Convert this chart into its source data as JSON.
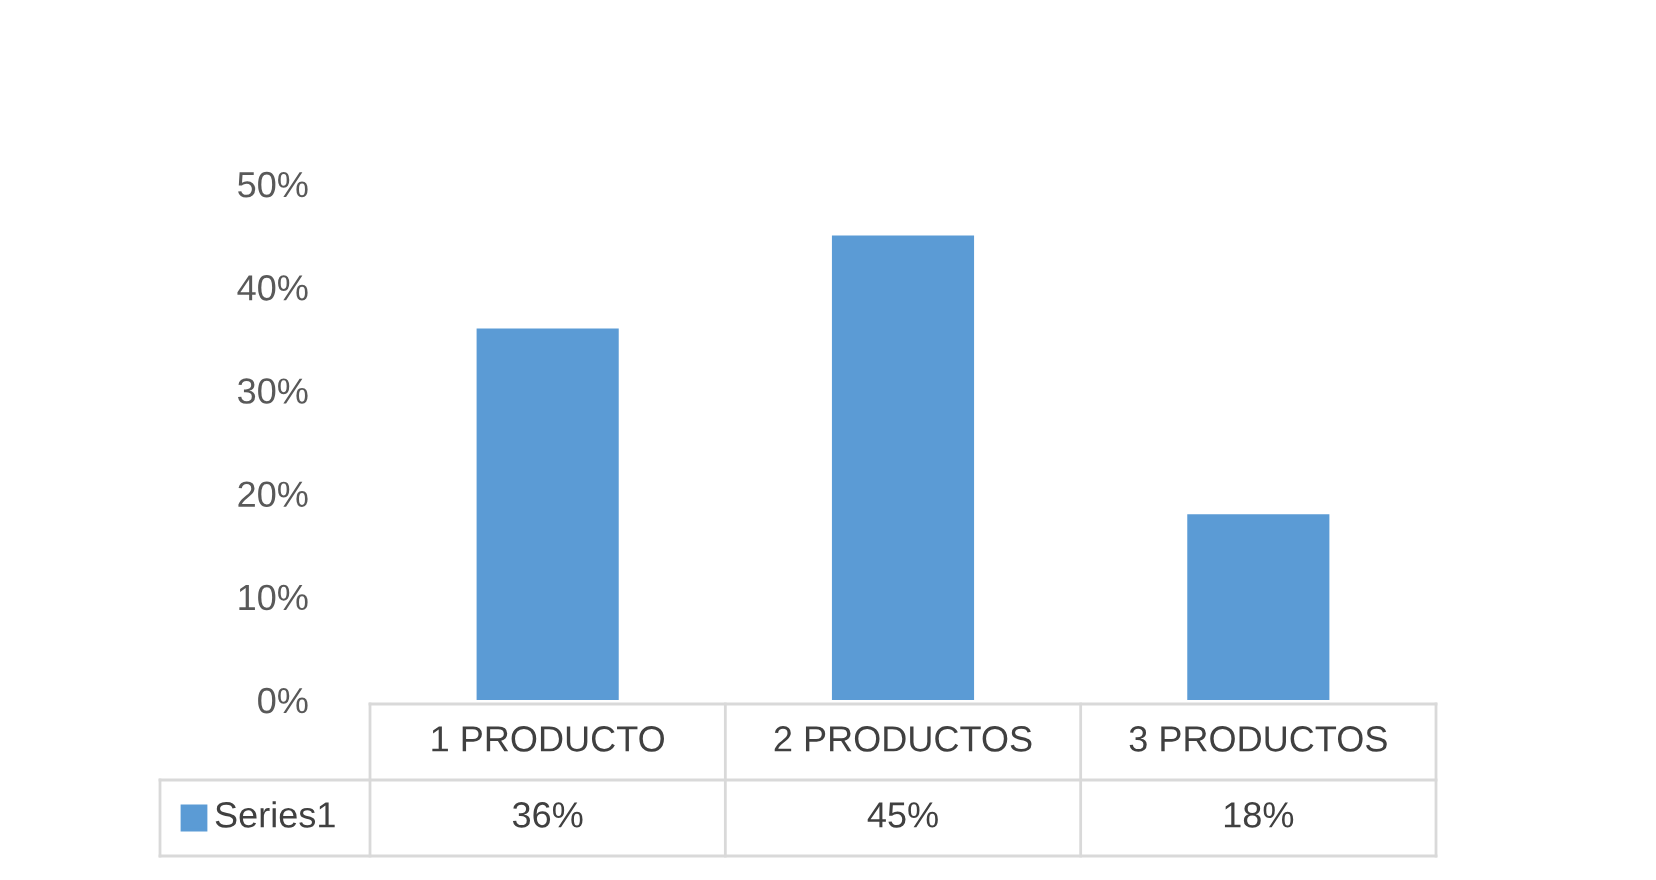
{
  "chart_data": {
    "type": "bar",
    "categories": [
      "1 PRODUCTO",
      "2 PRODUCTOS",
      "3 PRODUCTOS"
    ],
    "series": [
      {
        "name": "Series1",
        "color": "#5b9bd5",
        "values": [
          36,
          45,
          18
        ],
        "value_labels": [
          "36%",
          "45%",
          "18%"
        ]
      }
    ],
    "ylim": [
      0,
      50
    ],
    "yticks": [
      {
        "value": 0,
        "label": "0%"
      },
      {
        "value": 10,
        "label": "10%"
      },
      {
        "value": 20,
        "label": "20%"
      },
      {
        "value": 30,
        "label": "30%"
      },
      {
        "value": 40,
        "label": "40%"
      },
      {
        "value": 50,
        "label": "50%"
      }
    ],
    "grid": false,
    "legend": "bottom"
  }
}
